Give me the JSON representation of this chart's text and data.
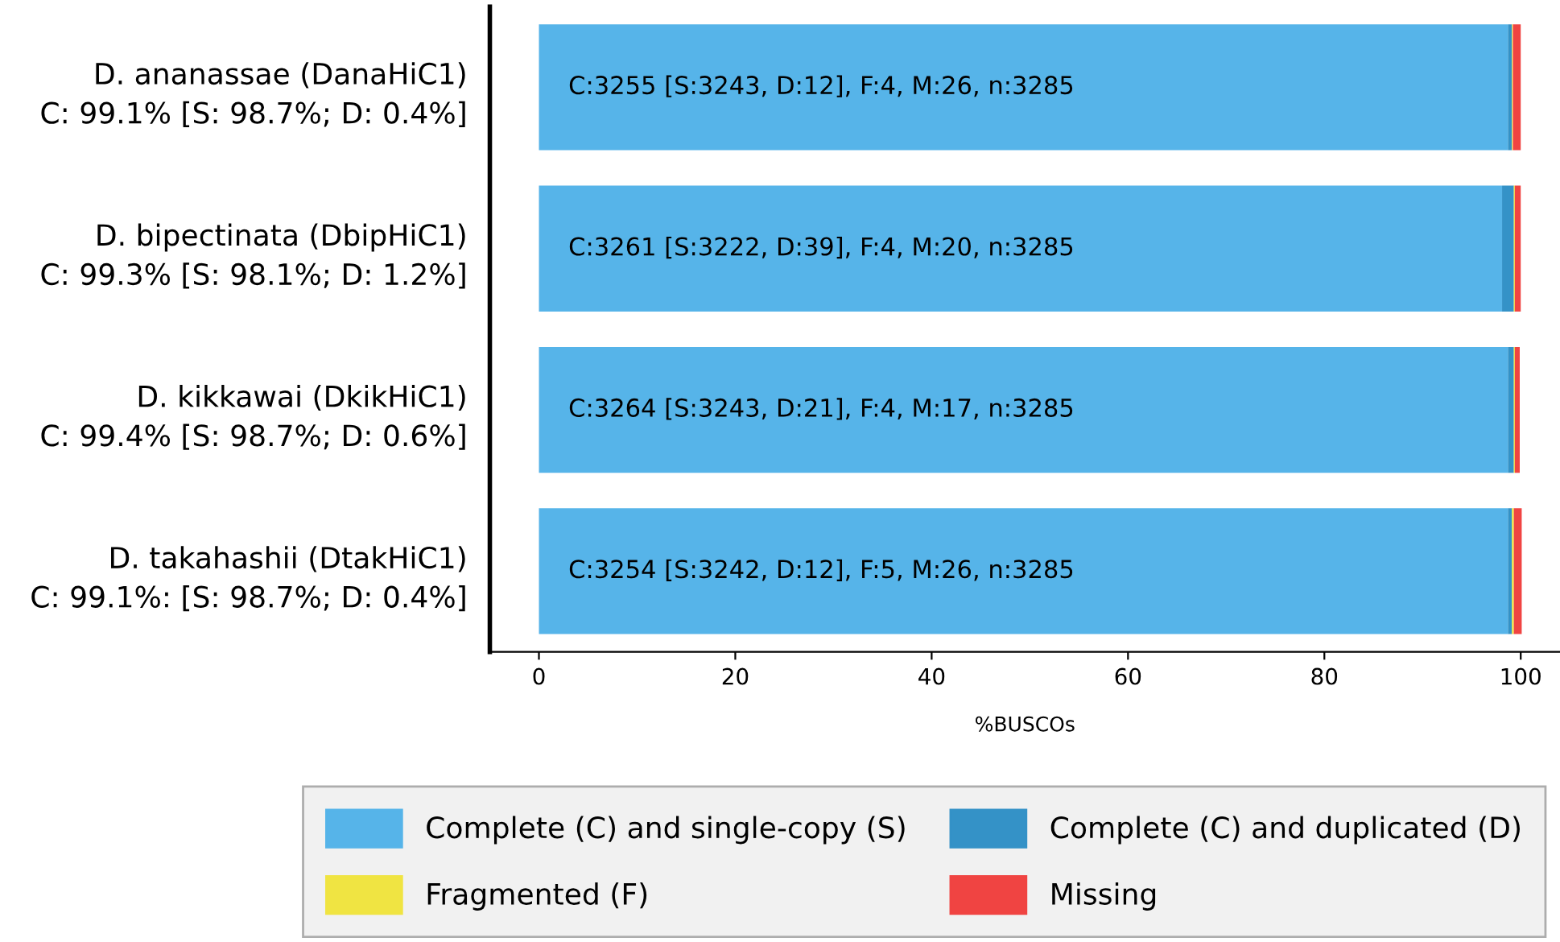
{
  "chart_data": {
    "type": "bar",
    "orientation": "horizontal",
    "stacked": true,
    "categories": [
      "D. ananassae (DanaHiC1)\nC: 99.1% [S: 98.7%; D: 0.4%]",
      "D. bipectinata (DbipHiC1)\nC: 99.3% [S: 98.1%; D: 1.2%]",
      "D. kikkawai (DkikHiC1)\nC: 99.4% [S: 98.7%; D: 0.6%]",
      "D. takahashii (DtakHiC1)\nC: 99.1%: [S: 98.7%; D: 0.4%]"
    ],
    "series": [
      {
        "name": "Complete (C) and single-copy (S)",
        "color": "#56b4e9",
        "values": [
          98.7,
          98.1,
          98.7,
          98.7
        ],
        "value_labels": [
          "C:3255 [S:3243, D:12], F:4, M:26, n:3285",
          "C:3261 [S:3222, D:39], F:4, M:20, n:3285",
          "C:3264 [S:3243, D:21], F:4, M:17, n:3285",
          "C:3254 [S:3242, D:12], F:5, M:26, n:3285"
        ]
      },
      {
        "name": "Complete (C) and duplicated (D)",
        "color": "#3492c7",
        "values": [
          0.4,
          1.2,
          0.6,
          0.4
        ]
      },
      {
        "name": "Fragmented (F)",
        "color": "#f0e442",
        "values": [
          0.1,
          0.1,
          0.1,
          0.2
        ]
      },
      {
        "name": "Missing",
        "color": "#f04442",
        "values": [
          0.8,
          0.6,
          0.5,
          0.8
        ]
      }
    ],
    "xlabel": "%BUSCOs",
    "xlim": [
      -5,
      104
    ],
    "xticks": [
      0,
      20,
      40,
      60,
      80,
      100
    ],
    "grid": false,
    "legend": "bottom"
  }
}
